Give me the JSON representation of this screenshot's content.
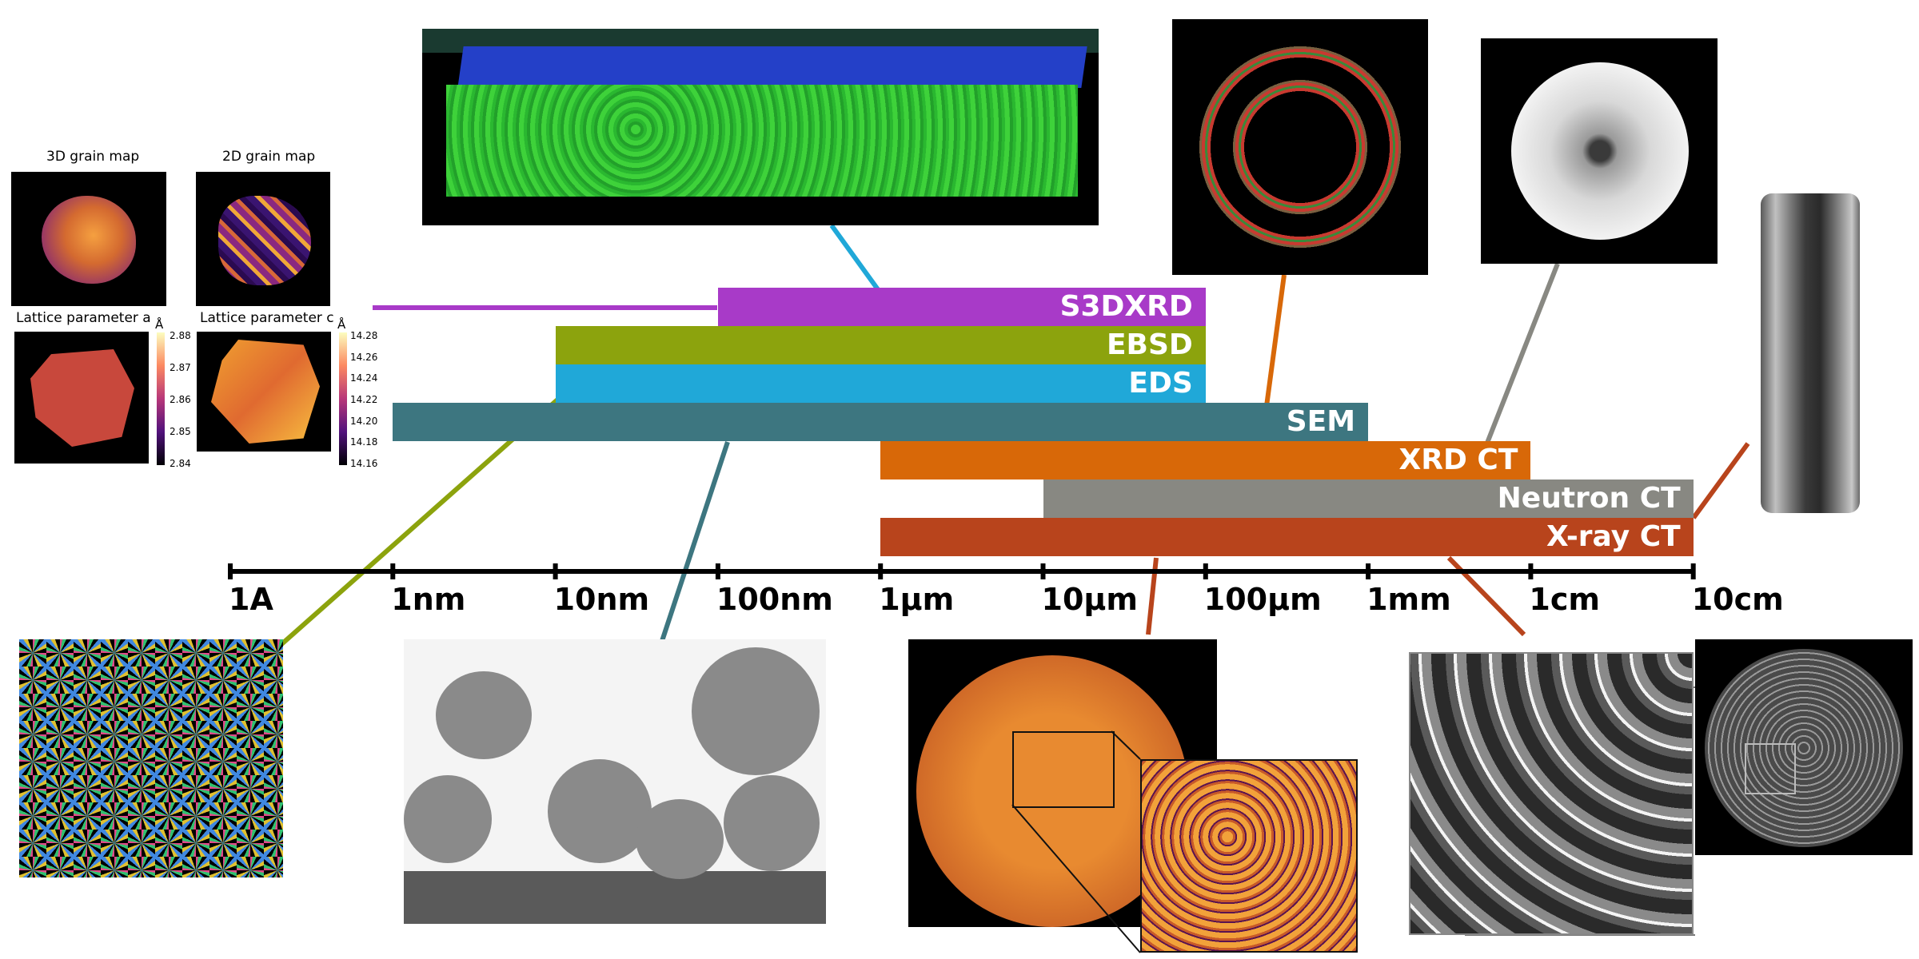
{
  "techniques": [
    {
      "name": "S3DXRD",
      "from": "100nm",
      "to": "100µm",
      "color": "#a83ac8"
    },
    {
      "name": "EBSD",
      "from": "10nm",
      "to": "100µm",
      "color": "#8ca30d"
    },
    {
      "name": "EDS",
      "from": "10nm",
      "to": "100µm",
      "color": "#20a8d8"
    },
    {
      "name": "SEM",
      "from": "1nm",
      "to": "1mm",
      "color": "#3d7680"
    },
    {
      "name": "XRD CT",
      "from": "1µm",
      "to": "1cm",
      "color": "#d86808"
    },
    {
      "name": "Neutron CT",
      "from": "10µm",
      "to": "10cm",
      "color": "#888882"
    },
    {
      "name": "X-ray CT",
      "from": "1µm",
      "to": "10cm",
      "color": "#b8441c"
    }
  ],
  "axis": {
    "ticks": [
      "1A",
      "1nm",
      "10nm",
      "100nm",
      "1µm",
      "10µm",
      "100µm",
      "1mm",
      "1cm",
      "10cm"
    ]
  },
  "grain_panel": {
    "title_3d": "3D grain map",
    "title_2d": "2D grain map",
    "title_a": "Lattice parameter a",
    "title_c": "Lattice parameter c",
    "unit": "Å",
    "colorbar_a": [
      "2.88",
      "2.87",
      "2.86",
      "2.85",
      "2.84"
    ],
    "colorbar_c": [
      "14.28",
      "14.26",
      "14.24",
      "14.22",
      "14.20",
      "14.18",
      "14.16"
    ]
  }
}
